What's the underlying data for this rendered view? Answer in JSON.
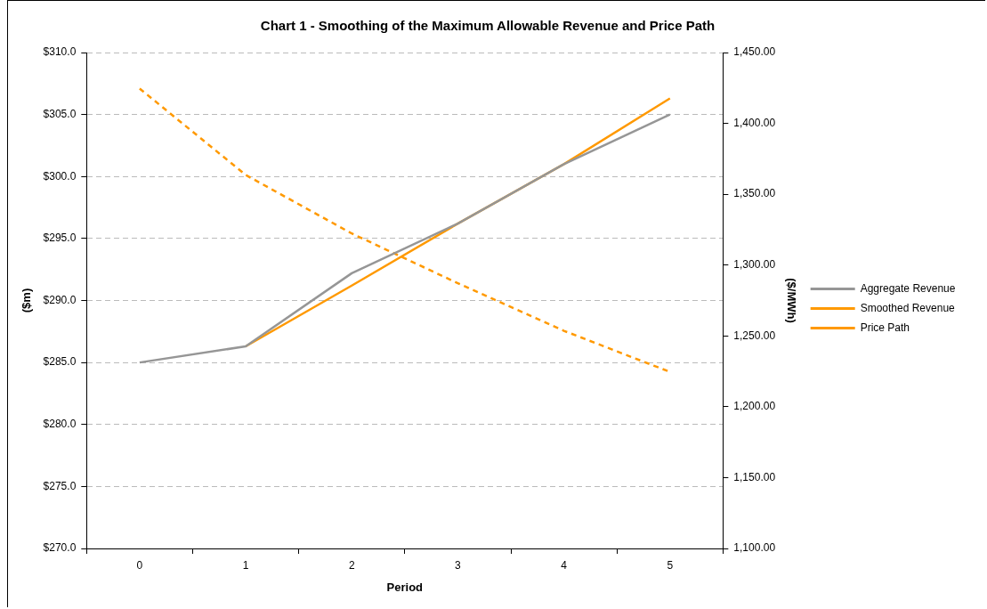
{
  "chart_data": {
    "type": "line",
    "title": "Chart 1 - Smoothing of the Maximum Allowable Revenue and Price Path",
    "xlabel": "Period",
    "ylabel": "($m)",
    "y2label": "($/MWh)",
    "categories": [
      "0",
      "1",
      "2",
      "3",
      "4",
      "5"
    ],
    "series": [
      {
        "name": "Aggregate Revenue",
        "color": "#969696",
        "values": [
          285.0,
          286.3,
          292.2,
          296.2,
          301.0,
          305.0
        ]
      },
      {
        "name": "Smoothed Revenue",
        "color": "#ff9900",
        "values": [
          null,
          286.3,
          291.2,
          296.2,
          301.0,
          306.3
        ]
      },
      {
        "name": "Price Path",
        "color": "#ff9900",
        "axis": "y2",
        "line_style": "dashed",
        "values": [
          1424.6,
          1363.6,
          1322.3,
          1287.2,
          1253.6,
          1224.6
        ]
      }
    ],
    "ylim": [
      270,
      310
    ],
    "yticks": [
      {
        "value": 270,
        "label": "$270.0"
      },
      {
        "value": 275,
        "label": "$275.0"
      },
      {
        "value": 280,
        "label": "$280.0"
      },
      {
        "value": 285,
        "label": "$285.0"
      },
      {
        "value": 290,
        "label": "$290.0"
      },
      {
        "value": 295,
        "label": "$295.0"
      },
      {
        "value": 300,
        "label": "$300.0"
      },
      {
        "value": 305,
        "label": "$305.0"
      },
      {
        "value": 310,
        "label": "$310.0"
      }
    ],
    "y2lim": [
      1100,
      1450
    ],
    "y2ticks": [
      {
        "value": 1100,
        "label": "1,100.00"
      },
      {
        "value": 1150,
        "label": "1,150.00"
      },
      {
        "value": 1200,
        "label": "1,200.00"
      },
      {
        "value": 1250,
        "label": "1,250.00"
      },
      {
        "value": 1300,
        "label": "1,300.00"
      },
      {
        "value": 1350,
        "label": "1,350.00"
      },
      {
        "value": 1400,
        "label": "1,400.00"
      },
      {
        "value": 1450,
        "label": "1,450.00"
      }
    ],
    "grid": "y",
    "legend": "right",
    "marker": "none",
    "line_style": "solid"
  }
}
